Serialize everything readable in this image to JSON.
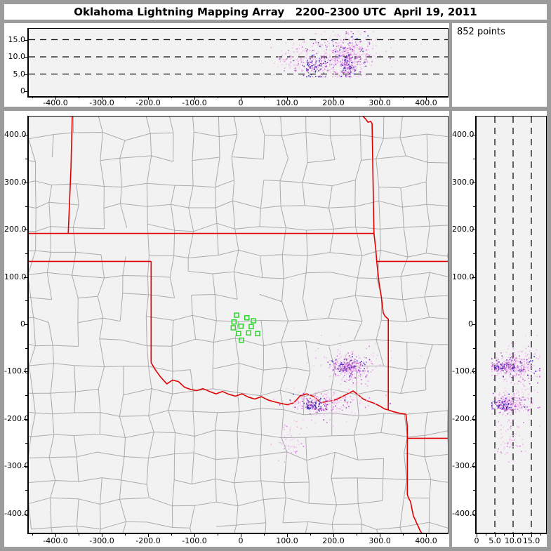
{
  "chart_data": {
    "type": "scatter",
    "title": "Oklahoma Lightning Mapping Array   2200–2300 UTC  April 19, 2011",
    "points_label": "852 points",
    "total_points": 852,
    "panels": {
      "top_altitude_ew": {
        "description": "altitude (km) vs east-west distance (km)",
        "xlim": [
          -460,
          444
        ],
        "ylim": [
          0,
          18.2
        ],
        "dashed_levels": [
          5,
          10,
          15
        ],
        "x_ticks": {
          "values": [
            -400,
            -300,
            -200,
            -100,
            0,
            100,
            200,
            300,
            400
          ],
          "labels": [
            "-400.0",
            "-300.0",
            "-200.0",
            "-100.0",
            "0",
            "100.0",
            "200.0",
            "300.0",
            "400.0"
          ],
          "minor_step": 50
        },
        "alt_ticks": {
          "values": [
            0,
            5,
            10,
            15
          ],
          "labels": [
            "0",
            "5.0",
            "10.0",
            "15.0"
          ]
        }
      },
      "plan_map": {
        "description": "plan view map, north-south (km) vs east-west (km)",
        "xlim": [
          -460,
          444
        ],
        "ylim": [
          -440,
          441
        ],
        "x_ticks": {
          "values": [
            -400,
            -300,
            -200,
            -100,
            0,
            100,
            200,
            300,
            400
          ],
          "labels": [
            "-400.0",
            "-300.0",
            "-200.0",
            "-100.0",
            "0",
            "100.0",
            "200.0",
            "300.0",
            "400.0"
          ],
          "minor_step": 50
        },
        "y_ticks": {
          "values": [
            400,
            300,
            200,
            100,
            0,
            -100,
            -200,
            -300,
            -400
          ],
          "labels": [
            "400.0",
            "300.0",
            "200.0",
            "100.0",
            "0",
            "-100.0",
            "-200.0",
            "-300.0",
            "-400.0"
          ],
          "minor_step": 50
        }
      },
      "right_altitude_ns": {
        "description": "north-south distance (km) vs altitude (km)",
        "xlim": [
          0,
          19
        ],
        "ylim": [
          -440,
          441
        ],
        "dashed_levels": [
          5,
          10,
          15
        ],
        "alt_ticks": {
          "values": [
            0,
            5,
            10,
            15
          ],
          "labels": [
            "0",
            "5.0",
            "10.0",
            "15.0"
          ],
          "minor_values": [
            2.5,
            7.5,
            12.5,
            17.5
          ]
        },
        "y_ticks": {
          "values": [
            400,
            300,
            200,
            100,
            0,
            -100,
            -200,
            -300,
            -400
          ],
          "labels": [
            "400.0",
            "300.0",
            "200.0",
            "100.0",
            "0",
            "-100.0",
            "-200.0",
            "-300.0",
            "-400.0"
          ],
          "minor_step": 50
        }
      }
    },
    "stations_km": [
      [
        -10.6,
        19.3
      ],
      [
        11.7,
        13.8
      ],
      [
        25.8,
        7.4
      ],
      [
        -16.2,
        4.9
      ],
      [
        21.2,
        -4.9
      ],
      [
        -1.1,
        -4.0
      ],
      [
        -17.7,
        -7.4
      ],
      [
        15.6,
        -18.2
      ],
      [
        -6.1,
        -19.7
      ],
      [
        34.8,
        -19.7
      ],
      [
        0,
        -33.6
      ]
    ],
    "state_borders_km": [
      [
        [
          -365,
          448
        ],
        [
          -368,
          330
        ],
        [
          -374,
          192
        ]
      ],
      [
        [
          -462,
          192
        ],
        [
          286,
          192
        ]
      ],
      [
        [
          -462,
          133
        ],
        [
          -195,
          133
        ]
      ],
      [
        [
          -195,
          133
        ],
        [
          -195,
          -81
        ]
      ],
      [
        [
          -195,
          -81
        ],
        [
          -186,
          -96
        ],
        [
          -175,
          -111
        ],
        [
          -161,
          -126
        ],
        [
          -149,
          -118
        ],
        [
          -136,
          -121
        ],
        [
          -123,
          -133
        ],
        [
          -109,
          -138
        ],
        [
          -96,
          -140
        ],
        [
          -83,
          -136
        ],
        [
          -69,
          -142
        ],
        [
          -55,
          -147
        ],
        [
          -41,
          -142
        ],
        [
          -27,
          -148
        ],
        [
          -13,
          -152
        ],
        [
          1,
          -147
        ],
        [
          15,
          -154
        ],
        [
          29,
          -158
        ],
        [
          43,
          -153
        ],
        [
          57,
          -160
        ],
        [
          71,
          -164
        ],
        [
          85,
          -167
        ],
        [
          99,
          -170
        ],
        [
          113,
          -166
        ],
        [
          127,
          -151
        ],
        [
          141,
          -147
        ],
        [
          157,
          -153
        ],
        [
          171,
          -166
        ],
        [
          185,
          -163
        ],
        [
          199,
          -161
        ],
        [
          213,
          -155
        ],
        [
          227,
          -148
        ],
        [
          241,
          -141
        ],
        [
          253,
          -150
        ],
        [
          263,
          -158
        ],
        [
          275,
          -163
        ],
        [
          287,
          -167
        ],
        [
          299,
          -173
        ],
        [
          309,
          -179
        ],
        [
          317,
          -181
        ],
        [
          329,
          -185
        ],
        [
          341,
          -188
        ],
        [
          355,
          -190
        ]
      ],
      [
        [
          256,
          448
        ],
        [
          263,
          439
        ],
        [
          269,
          433
        ],
        [
          273,
          427
        ],
        [
          279,
          429
        ],
        [
          282,
          424
        ],
        [
          284,
          310
        ],
        [
          286,
          192
        ],
        [
          290,
          158
        ],
        [
          292,
          133
        ],
        [
          297,
          88
        ],
        [
          302,
          58
        ],
        [
          306,
          24
        ],
        [
          310,
          17
        ],
        [
          317,
          11
        ],
        [
          317,
          -80
        ],
        [
          317,
          -181
        ]
      ],
      [
        [
          355,
          -190
        ],
        [
          358,
          -215
        ],
        [
          358,
          -360
        ],
        [
          361,
          -368
        ],
        [
          365,
          -375
        ],
        [
          367,
          -385
        ],
        [
          369,
          -395
        ],
        [
          371,
          -405
        ],
        [
          375,
          -413
        ],
        [
          378,
          -420
        ],
        [
          382,
          -428
        ],
        [
          385,
          -435
        ],
        [
          390,
          -443
        ]
      ],
      [
        [
          358,
          -241
        ],
        [
          446,
          -241
        ]
      ],
      [
        [
          292,
          133
        ],
        [
          446,
          133
        ]
      ]
    ],
    "lightning_clusters": [
      {
        "name": "storm-A-core",
        "cx": 228,
        "cy": -90,
        "sx": 9,
        "sy": 5,
        "n": 120,
        "alt_mean": 7.5,
        "alt_sd": 2.2,
        "palette": "dense"
      },
      {
        "name": "storm-A-main",
        "cx": 232,
        "cy": -90,
        "sx": 22,
        "sy": 13,
        "n": 255,
        "alt_mean": 10.5,
        "alt_sd": 3.0,
        "palette": "mixed"
      },
      {
        "name": "storm-A-halo",
        "cx": 235,
        "cy": -88,
        "sx": 46,
        "sy": 26,
        "n": 90,
        "alt_mean": 11.5,
        "alt_sd": 3.2,
        "palette": "light"
      },
      {
        "name": "storm-B-core",
        "cx": 158,
        "cy": -172,
        "sx": 15,
        "sy": 6,
        "n": 95,
        "alt_mean": 7.0,
        "alt_sd": 1.8,
        "palette": "dense"
      },
      {
        "name": "storm-B-main",
        "cx": 176,
        "cy": -168,
        "sx": 38,
        "sy": 13,
        "n": 185,
        "alt_mean": 9.5,
        "alt_sd": 2.8,
        "palette": "mixed"
      },
      {
        "name": "storm-B-halo",
        "cx": 185,
        "cy": -162,
        "sx": 58,
        "sy": 24,
        "n": 52,
        "alt_mean": 10.0,
        "alt_sd": 3.0,
        "palette": "light"
      },
      {
        "name": "storm-C",
        "cx": 105,
        "cy": -255,
        "sx": 18,
        "sy": 28,
        "n": 55,
        "alt_mean": 9.0,
        "alt_sd": 2.0,
        "palette": "light"
      }
    ],
    "palettes": {
      "light": [
        [
          "#f4c2f2",
          0.75
        ],
        [
          "#e9a6e9",
          0.95
        ],
        [
          "#d27ad6",
          1.0
        ]
      ],
      "mixed": [
        [
          "#f4c2f2",
          0.45
        ],
        [
          "#e9a6e9",
          0.67
        ],
        [
          "#cf6fd4",
          0.81
        ],
        [
          "#a845c8",
          0.9
        ],
        [
          "#7a2fb0",
          0.96
        ],
        [
          "#2a2ab8",
          1.0
        ]
      ],
      "dense": [
        [
          "#e9a6e9",
          0.2
        ],
        [
          "#cf6fd4",
          0.4
        ],
        [
          "#a845c8",
          0.6
        ],
        [
          "#6a28a8",
          0.78
        ],
        [
          "#2a2ab8",
          1.0
        ]
      ]
    },
    "county_grid": {
      "seed": 20110419,
      "cell_w_min": 40,
      "cell_w_max": 58,
      "cell_h_min": 42,
      "cell_h_max": 58,
      "jitter": 9,
      "skip_prob": 0.14,
      "x_range": [
        -500,
        475
      ],
      "y_range": [
        -470,
        470
      ]
    }
  },
  "colors": {
    "window_bg": "#9c9c9c",
    "panel_bg": "#ffffff",
    "plot_bg": "#f2f2f2",
    "axis": "#000000",
    "county_line": "#ababab",
    "state_border": "#e00000",
    "station": "#2ed52e",
    "dashed_line": "#111111"
  }
}
